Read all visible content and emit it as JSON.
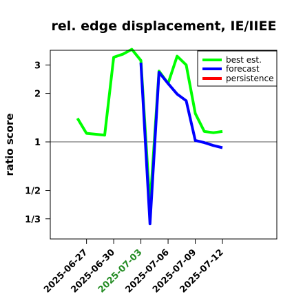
{
  "chart_data": {
    "type": "line",
    "title": "rel. edge displacement, IE/IIEE",
    "ylabel": "ratio score",
    "xlabel": "",
    "y_scale": "log",
    "ylim": [
      0.25,
      3.7
    ],
    "xlim": [
      "2025-06-23",
      "2025-07-18"
    ],
    "y_ticks": [
      {
        "value": 0.3333,
        "label": "1/3"
      },
      {
        "value": 0.5,
        "label": "1/2"
      },
      {
        "value": 1,
        "label": "1"
      },
      {
        "value": 2,
        "label": "2"
      },
      {
        "value": 3,
        "label": "3"
      }
    ],
    "x_ticks": [
      {
        "date": "2025-06-27",
        "label": "2025-06-27",
        "color": "#000000"
      },
      {
        "date": "2025-06-30",
        "label": "2025-06-30",
        "color": "#000000"
      },
      {
        "date": "2025-07-03",
        "label": "2025-07-03",
        "color": "#228B22"
      },
      {
        "date": "2025-07-06",
        "label": "2025-07-06",
        "color": "#000000"
      },
      {
        "date": "2025-07-09",
        "label": "2025-07-09",
        "color": "#000000"
      },
      {
        "date": "2025-07-12",
        "label": "2025-07-12",
        "color": "#000000"
      }
    ],
    "reference_line": 1,
    "grid": false,
    "legend_position": "top-right",
    "series": [
      {
        "name": "best est.",
        "color": "#00ff00",
        "points": [
          {
            "x": "2025-06-26",
            "y": 1.4
          },
          {
            "x": "2025-06-27",
            "y": 1.13
          },
          {
            "x": "2025-06-29",
            "y": 1.1
          },
          {
            "x": "2025-06-30",
            "y": 3.35
          },
          {
            "x": "2025-07-01",
            "y": 3.5
          },
          {
            "x": "2025-07-02",
            "y": 3.75
          },
          {
            "x": "2025-07-03",
            "y": 3.2
          },
          {
            "x": "2025-07-04",
            "y": 0.4
          },
          {
            "x": "2025-07-05",
            "y": 2.75
          },
          {
            "x": "2025-07-06",
            "y": 2.3
          },
          {
            "x": "2025-07-07",
            "y": 3.4
          },
          {
            "x": "2025-07-08",
            "y": 3.0
          },
          {
            "x": "2025-07-09",
            "y": 1.5
          },
          {
            "x": "2025-07-10",
            "y": 1.16
          },
          {
            "x": "2025-07-11",
            "y": 1.14
          },
          {
            "x": "2025-07-12",
            "y": 1.16
          }
        ]
      },
      {
        "name": "forecast",
        "color": "#0000ff",
        "points": [
          {
            "x": "2025-07-03",
            "y": 3.1
          },
          {
            "x": "2025-07-04",
            "y": 0.31
          },
          {
            "x": "2025-07-05",
            "y": 2.7
          },
          {
            "x": "2025-07-06",
            "y": 2.3
          },
          {
            "x": "2025-07-07",
            "y": 1.98
          },
          {
            "x": "2025-07-08",
            "y": 1.8
          },
          {
            "x": "2025-07-09",
            "y": 1.02
          },
          {
            "x": "2025-07-10",
            "y": 0.99
          },
          {
            "x": "2025-07-11",
            "y": 0.95
          },
          {
            "x": "2025-07-12",
            "y": 0.92
          }
        ]
      },
      {
        "name": "persistence",
        "color": "#ff0000",
        "points": []
      }
    ]
  }
}
